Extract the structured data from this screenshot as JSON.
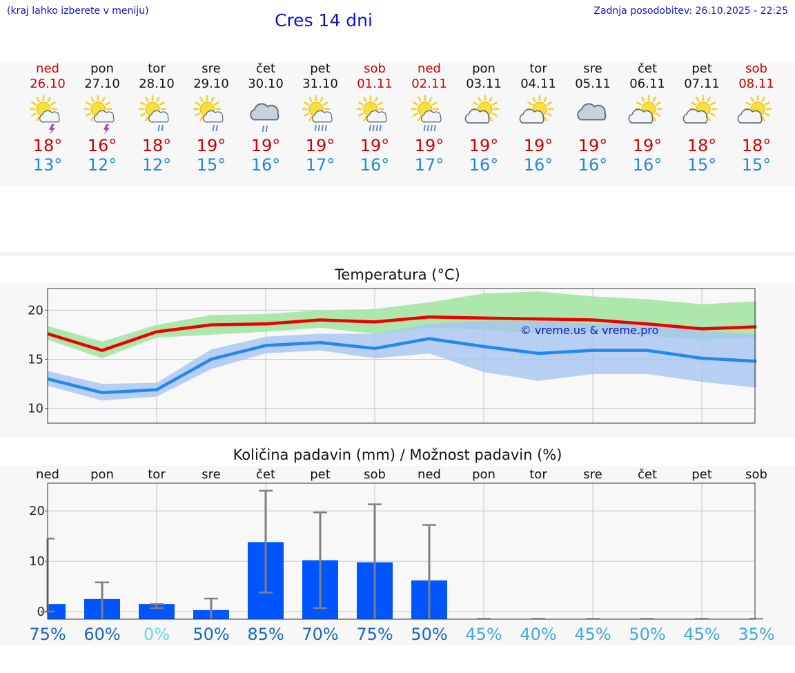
{
  "header": {
    "menu_hint": "(kraj lahko izberete v meniju)",
    "title": "Cres 14 dni",
    "updated": "Zadnja posodobitev: 26.10.2025 - 22:25"
  },
  "days": [
    {
      "name": "ned",
      "date": "26.10",
      "weekend": true,
      "icon": "sun-cloud-thunder-icon",
      "tmax": "18°",
      "tmin": "13°"
    },
    {
      "name": "pon",
      "date": "27.10",
      "weekend": false,
      "icon": "sun-cloud-thunder-icon",
      "tmax": "16°",
      "tmin": "12°"
    },
    {
      "name": "tor",
      "date": "28.10",
      "weekend": false,
      "icon": "sun-cloud-rain-icon",
      "tmax": "18°",
      "tmin": "12°"
    },
    {
      "name": "sre",
      "date": "29.10",
      "weekend": false,
      "icon": "sun-cloud-rain-icon",
      "tmax": "19°",
      "tmin": "15°"
    },
    {
      "name": "čet",
      "date": "30.10",
      "weekend": false,
      "icon": "cloud-rain-icon",
      "tmax": "19°",
      "tmin": "16°"
    },
    {
      "name": "pet",
      "date": "31.10",
      "weekend": false,
      "icon": "sun-cloud-heavy-rain-icon",
      "tmax": "19°",
      "tmin": "17°"
    },
    {
      "name": "sob",
      "date": "01.11",
      "weekend": true,
      "icon": "sun-cloud-heavy-rain-icon",
      "tmax": "19°",
      "tmin": "16°"
    },
    {
      "name": "ned",
      "date": "02.11",
      "weekend": true,
      "icon": "sun-cloud-heavy-rain-icon",
      "tmax": "19°",
      "tmin": "17°"
    },
    {
      "name": "pon",
      "date": "03.11",
      "weekend": false,
      "icon": "sun-cloud-icon",
      "tmax": "19°",
      "tmin": "16°"
    },
    {
      "name": "tor",
      "date": "04.11",
      "weekend": false,
      "icon": "sun-cloud-icon",
      "tmax": "19°",
      "tmin": "16°"
    },
    {
      "name": "sre",
      "date": "05.11",
      "weekend": false,
      "icon": "cloud-icon",
      "tmax": "19°",
      "tmin": "16°"
    },
    {
      "name": "čet",
      "date": "06.11",
      "weekend": false,
      "icon": "sun-cloud-icon",
      "tmax": "19°",
      "tmin": "16°"
    },
    {
      "name": "pet",
      "date": "07.11",
      "weekend": false,
      "icon": "sun-cloud-icon",
      "tmax": "18°",
      "tmin": "15°"
    },
    {
      "name": "sob",
      "date": "08.11",
      "weekend": true,
      "icon": "sun-cloud-icon",
      "tmax": "18°",
      "tmin": "15°"
    }
  ],
  "colors": {
    "max_line": "#ee0000",
    "max_band": "#a8e6a8",
    "min_line": "#2288ee",
    "min_band": "#a8c4f2",
    "bar": "#0055ff",
    "errbar": "#808080",
    "weekend": "#d00000",
    "pct_high": "#1a66bb",
    "pct_low": "#44a8dd",
    "pct_zero": "#66d8ee"
  },
  "chart_data": [
    {
      "type": "line",
      "title": "Temperatura (°C)",
      "watermark": "© vreme.us & vreme.pro",
      "categories": [
        "ned",
        "pon",
        "tor",
        "sre",
        "čet",
        "pet",
        "sob",
        "ned",
        "pon",
        "tor",
        "sre",
        "čet",
        "pet",
        "sob"
      ],
      "ylim": [
        8.5,
        22.2
      ],
      "yticks": [
        10,
        15,
        20
      ],
      "grid": true,
      "series": [
        {
          "role": "max",
          "values": [
            17.6,
            15.9,
            17.8,
            18.5,
            18.6,
            19.0,
            18.8,
            19.3,
            19.2,
            19.1,
            19.0,
            18.6,
            18.1,
            18.3
          ],
          "band_low": [
            17.0,
            15.1,
            17.2,
            17.5,
            17.8,
            18.2,
            17.6,
            18.2,
            18.0,
            17.6,
            17.8,
            17.4,
            17.0,
            17.2
          ],
          "band_high": [
            18.4,
            16.8,
            18.5,
            19.5,
            19.6,
            20.0,
            20.1,
            20.8,
            21.7,
            21.9,
            21.4,
            21.1,
            20.6,
            20.9
          ]
        },
        {
          "role": "min",
          "values": [
            13.0,
            11.6,
            11.9,
            15.0,
            16.4,
            16.7,
            16.1,
            17.1,
            16.3,
            15.6,
            15.9,
            15.9,
            15.1,
            14.8
          ],
          "band_low": [
            12.3,
            10.8,
            11.2,
            14.0,
            15.6,
            15.9,
            15.1,
            15.6,
            13.7,
            12.8,
            13.5,
            13.5,
            12.7,
            12.1
          ],
          "band_high": [
            13.8,
            12.5,
            12.6,
            16.0,
            17.3,
            17.6,
            17.6,
            18.6,
            18.9,
            18.9,
            18.6,
            18.6,
            17.9,
            17.5
          ]
        }
      ]
    },
    {
      "type": "bar",
      "title": "Količina padavin (mm) / Možnost padavin (%)",
      "categories": [
        "ned",
        "pon",
        "tor",
        "sre",
        "čet",
        "pet",
        "sob",
        "ned",
        "pon",
        "tor",
        "sre",
        "čet",
        "pet",
        "sob"
      ],
      "ylim": [
        -1.5,
        25.5
      ],
      "yticks": [
        0,
        10,
        20
      ],
      "grid": true,
      "values": [
        1.5,
        2.5,
        1.5,
        0.3,
        13.8,
        10.2,
        9.8,
        6.2,
        0,
        0,
        0,
        0,
        0,
        0
      ],
      "err_low": [
        null,
        -1.5,
        0.7,
        -1.5,
        3.8,
        0.7,
        -1.5,
        -1.5,
        null,
        null,
        null,
        null,
        null,
        null
      ],
      "err_high": [
        14.5,
        5.8,
        1.5,
        2.6,
        24.0,
        19.7,
        21.3,
        17.2,
        null,
        null,
        null,
        null,
        null,
        null
      ],
      "probability": [
        "75%",
        "60%",
        "0%",
        "50%",
        "85%",
        "70%",
        "75%",
        "50%",
        "45%",
        "40%",
        "45%",
        "50%",
        "45%",
        "35%"
      ]
    }
  ]
}
